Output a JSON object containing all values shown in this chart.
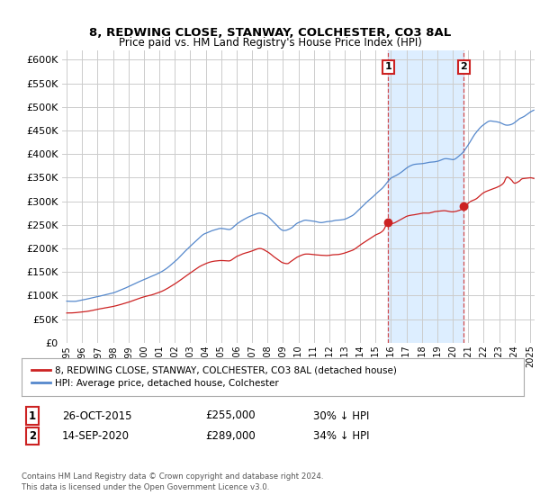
{
  "title": "8, REDWING CLOSE, STANWAY, COLCHESTER, CO3 8AL",
  "subtitle": "Price paid vs. HM Land Registry's House Price Index (HPI)",
  "ylim": [
    0,
    620000
  ],
  "yticks": [
    0,
    50000,
    100000,
    150000,
    200000,
    250000,
    300000,
    350000,
    400000,
    450000,
    500000,
    550000,
    600000
  ],
  "xlim": [
    1994.7,
    2025.3
  ],
  "hpi_color": "#5588cc",
  "property_color": "#cc2222",
  "background_color": "#ffffff",
  "shaded_region_color": "#ddeeff",
  "annotation_box_color": "#cc2222",
  "legend_property": "8, REDWING CLOSE, STANWAY, COLCHESTER, CO3 8AL (detached house)",
  "legend_hpi": "HPI: Average price, detached house, Colchester",
  "note1_num": "1",
  "note1_date": "26-OCT-2015",
  "note1_price": "£255,000",
  "note1_hpi": "30% ↓ HPI",
  "note2_num": "2",
  "note2_date": "14-SEP-2020",
  "note2_price": "£289,000",
  "note2_hpi": "34% ↓ HPI",
  "footer": "Contains HM Land Registry data © Crown copyright and database right 2024.\nThis data is licensed under the Open Government Licence v3.0.",
  "point1_x": 2015.82,
  "point1_y": 255000,
  "point2_x": 2020.71,
  "point2_y": 289000
}
